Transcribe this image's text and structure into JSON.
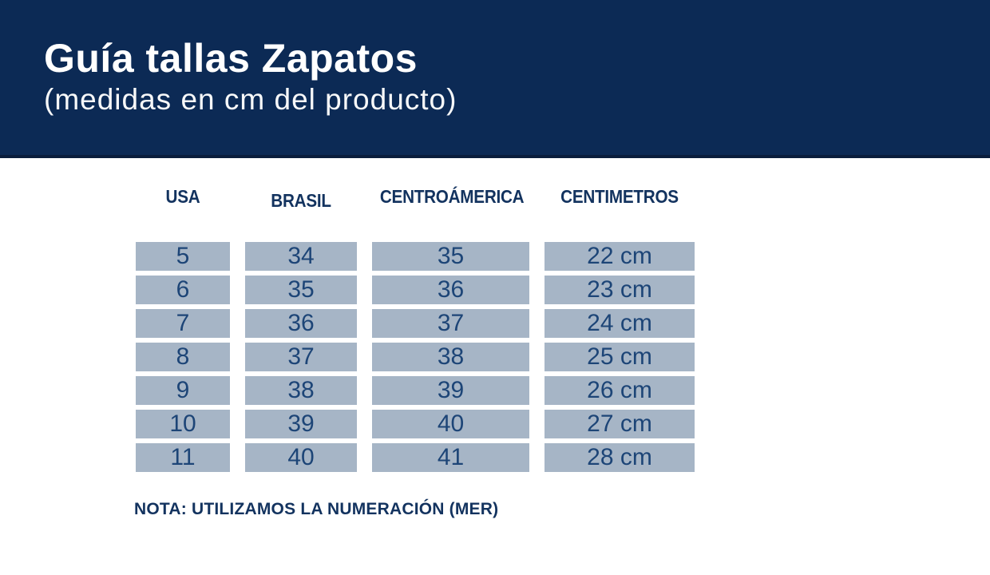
{
  "header": {
    "title": "Guía tallas Zapatos",
    "subtitle": "(medidas en cm del producto)"
  },
  "note": "NOTA: UTILIZAMOS LA NUMERACIÓN (MER)",
  "colors": {
    "band_background": "#0c2a55",
    "band_bottom_border": "#0a1d3c",
    "title_text": "#ffffff",
    "column_header_text": "#13335f",
    "cell_fill": "#a6b5c6",
    "cell_text": "#1d4577",
    "note_text": "#13335f",
    "page_background": "#ffffff"
  },
  "chart_data": {
    "type": "table",
    "title": "Guía tallas Zapatos (medidas en cm del producto)",
    "columns": [
      "USA",
      "BRASIL",
      "CENTROÁMERICA",
      "CENTIMETROS"
    ],
    "rows": [
      [
        "5",
        "34",
        "35",
        "22 cm"
      ],
      [
        "6",
        "35",
        "36",
        "23 cm"
      ],
      [
        "7",
        "36",
        "37",
        "24 cm"
      ],
      [
        "8",
        "37",
        "38",
        "25 cm"
      ],
      [
        "9",
        "38",
        "39",
        "26 cm"
      ],
      [
        "10",
        "39",
        "40",
        "27 cm"
      ],
      [
        "11",
        "40",
        "41",
        "28 cm"
      ]
    ],
    "note": "NOTA: UTILIZAMOS LA NUMERACIÓN (MER)"
  }
}
